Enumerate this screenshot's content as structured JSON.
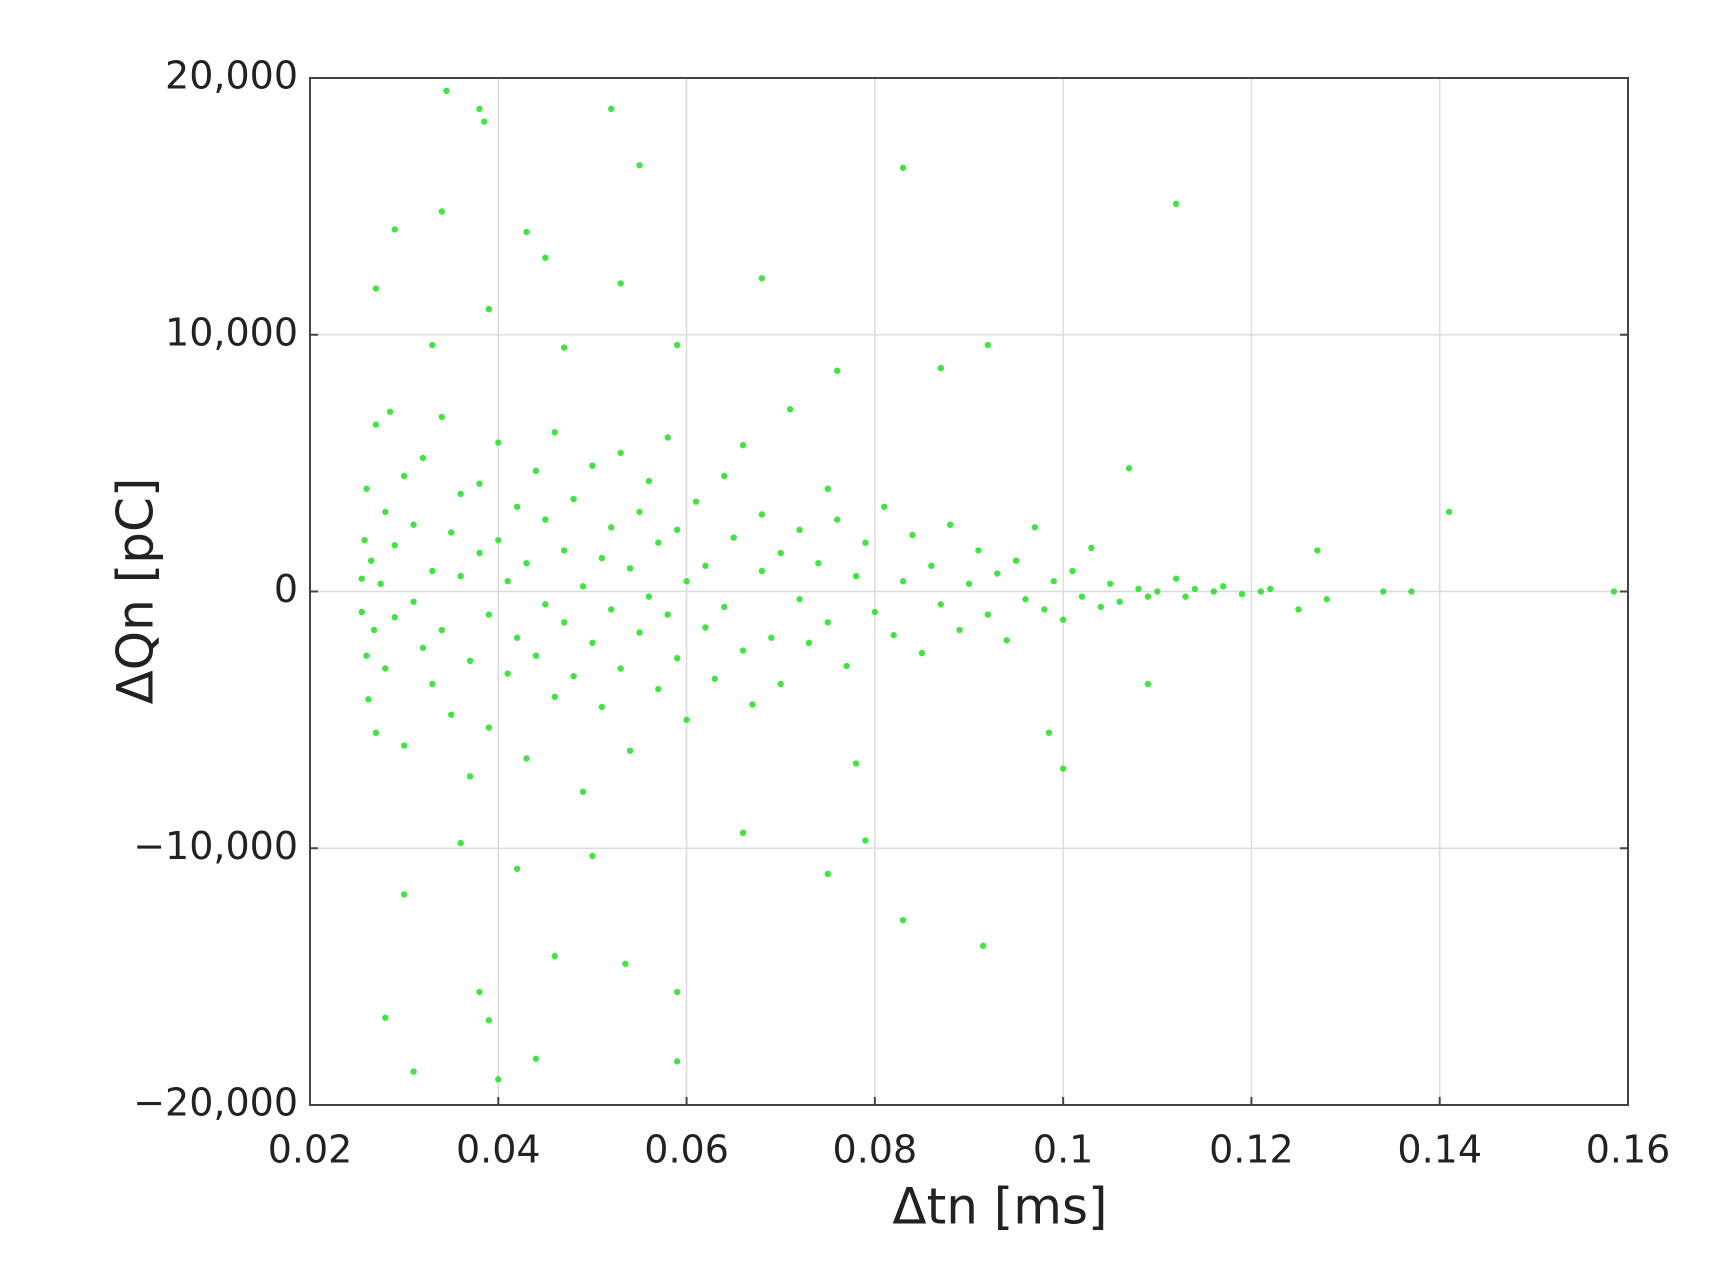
{
  "chart_data": {
    "type": "scatter",
    "x_label": "Δtn [ms]",
    "y_label": "ΔQn [pC]",
    "color": "#2ee02e",
    "grid": true,
    "xlim": [
      0.02,
      0.16
    ],
    "xticks": [
      0.02,
      0.04,
      0.06,
      0.08,
      0.1,
      0.12,
      0.14,
      0.16
    ],
    "ylim": [
      -20000,
      20000
    ],
    "yticks": [
      {
        "value": -20000,
        "label": "−20,000"
      },
      {
        "value": -10000,
        "label": "−10,000"
      },
      0,
      {
        "value": 10000,
        "label": "10,000"
      },
      {
        "value": 20000,
        "label": "20,000"
      }
    ],
    "x": [
      0.0255,
      0.0255,
      0.0258,
      0.026,
      0.026,
      0.0262,
      0.0265,
      0.0268,
      0.027,
      0.027,
      0.0275,
      0.028,
      0.028,
      0.0285,
      0.029,
      0.029,
      0.03,
      0.03,
      0.031,
      0.031,
      0.032,
      0.032,
      0.033,
      0.033,
      0.034,
      0.034,
      0.035,
      0.035,
      0.036,
      0.036,
      0.037,
      0.037,
      0.038,
      0.038,
      0.039,
      0.039,
      0.04,
      0.04,
      0.041,
      0.041,
      0.042,
      0.042,
      0.043,
      0.043,
      0.044,
      0.044,
      0.045,
      0.045,
      0.046,
      0.046,
      0.047,
      0.047,
      0.048,
      0.048,
      0.049,
      0.049,
      0.05,
      0.05,
      0.051,
      0.051,
      0.052,
      0.052,
      0.053,
      0.053,
      0.054,
      0.054,
      0.055,
      0.055,
      0.056,
      0.056,
      0.057,
      0.057,
      0.058,
      0.058,
      0.059,
      0.059,
      0.06,
      0.06,
      0.061,
      0.062,
      0.062,
      0.063,
      0.064,
      0.064,
      0.065,
      0.066,
      0.066,
      0.067,
      0.068,
      0.068,
      0.069,
      0.07,
      0.07,
      0.071,
      0.072,
      0.072,
      0.073,
      0.074,
      0.075,
      0.075,
      0.076,
      0.077,
      0.078,
      0.078,
      0.079,
      0.08,
      0.081,
      0.082,
      0.083,
      0.084,
      0.085,
      0.086,
      0.087,
      0.088,
      0.089,
      0.09,
      0.091,
      0.092,
      0.093,
      0.094,
      0.095,
      0.096,
      0.097,
      0.098,
      0.099,
      0.1,
      0.101,
      0.102,
      0.103,
      0.104,
      0.105,
      0.106,
      0.107,
      0.108,
      0.109,
      0.11,
      0.112,
      0.113,
      0.114,
      0.116,
      0.117,
      0.119,
      0.121,
      0.122,
      0.0345,
      0.038,
      0.0385,
      0.052,
      0.055,
      0.083,
      0.112,
      0.034,
      0.029,
      0.043,
      0.068,
      0.053,
      0.045,
      0.1585,
      0.141,
      0.137,
      0.134,
      0.128,
      0.127,
      0.125,
      0.031,
      0.04,
      0.044,
      0.059,
      0.059,
      0.038,
      0.039,
      0.028,
      0.0915,
      0.083,
      0.0535,
      0.046,
      0.075,
      0.0985,
      0.1,
      0.109,
      0.092,
      0.087,
      0.076,
      0.059,
      0.047,
      0.039,
      0.033,
      0.027,
      0.03,
      0.036,
      0.05,
      0.066,
      0.079,
      0.042
    ],
    "values": [
      500,
      -800,
      2000,
      -2500,
      4000,
      -4200,
      1200,
      -1500,
      6500,
      -5500,
      300,
      3100,
      -3000,
      7000,
      -1000,
      1800,
      -6000,
      4500,
      -400,
      2600,
      -2200,
      5200,
      800,
      -3600,
      6800,
      -1500,
      2300,
      -4800,
      600,
      3800,
      -2700,
      -7200,
      1500,
      4200,
      -900,
      -5300,
      5800,
      2000,
      -3200,
      400,
      3300,
      -1800,
      -6500,
      1100,
      4700,
      -2500,
      -500,
      2800,
      -4100,
      6200,
      1600,
      -1200,
      3600,
      -3300,
      200,
      -7800,
      4900,
      -2000,
      1300,
      -4500,
      2500,
      -700,
      5400,
      -3000,
      900,
      -6200,
      3100,
      -1600,
      -200,
      4300,
      -3800,
      1900,
      6000,
      -900,
      2400,
      -2600,
      400,
      -5000,
      3500,
      -1400,
      1000,
      -3400,
      4500,
      -600,
      2100,
      -2300,
      5700,
      -4400,
      800,
      3000,
      -1800,
      1500,
      -3600,
      7100,
      -300,
      2400,
      -2000,
      1100,
      4000,
      -1200,
      2800,
      -2900,
      600,
      -6700,
      1900,
      -800,
      3300,
      -1700,
      400,
      2200,
      -2400,
      1000,
      -500,
      2600,
      -1500,
      300,
      1600,
      -900,
      700,
      -1900,
      1200,
      -300,
      2500,
      -700,
      400,
      -1100,
      800,
      -200,
      1700,
      -600,
      300,
      -400,
      4800,
      100,
      -200,
      0,
      500,
      -200,
      100,
      0,
      200,
      -100,
      0,
      100,
      19500,
      18800,
      18300,
      18800,
      16600,
      16500,
      15100,
      14800,
      14100,
      14000,
      12200,
      12000,
      13000,
      0,
      3100,
      0,
      0,
      -300,
      1600,
      -700,
      -18700,
      -19000,
      -18200,
      -18300,
      -15600,
      -15600,
      -16700,
      -16600,
      -13800,
      -12800,
      -14500,
      -14200,
      -11000,
      -5500,
      -6900,
      -3600,
      9600,
      8700,
      8600,
      9600,
      9500,
      11000,
      9600,
      11800,
      -11800,
      -9800,
      -10300,
      -9400,
      -9700,
      -10800
    ]
  }
}
